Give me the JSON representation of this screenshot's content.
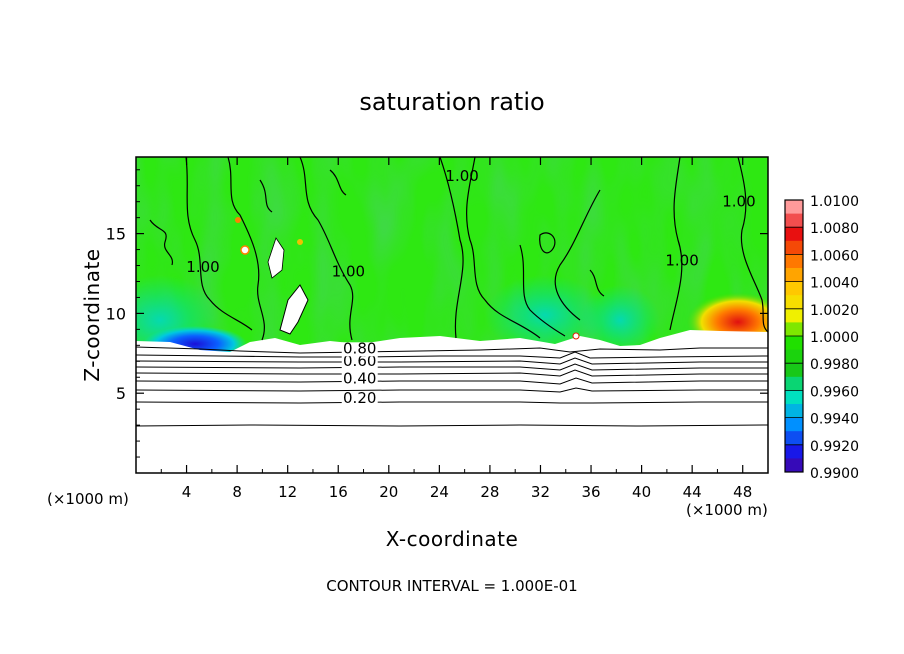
{
  "chart_data": {
    "type": "heatmap",
    "title": "saturation ratio",
    "xlabel": "X-coordinate",
    "ylabel": "Z-coordinate",
    "x_unit_label": "(×1000 m)",
    "x_ticks": [
      "4",
      "8",
      "12",
      "16",
      "20",
      "24",
      "28",
      "32",
      "36",
      "40",
      "44",
      "48"
    ],
    "y_ticks": [
      "5",
      "10",
      "15"
    ],
    "xlim": [
      0,
      50
    ],
    "ylim": [
      0,
      19.8
    ],
    "footer": "CONTOUR INTERVAL = 1.000E-01",
    "colorbar": {
      "labels": [
        "1.0100",
        "1.0080",
        "1.0060",
        "1.0040",
        "1.0020",
        "1.0000",
        "0.9980",
        "0.9960",
        "0.9940",
        "0.9920",
        "0.9900"
      ],
      "colors": [
        "#ff9a9a",
        "#e81010",
        "#ff7800",
        "#ffc800",
        "#f0f000",
        "#20e000",
        "#18c818",
        "#00e0c0",
        "#0090ff",
        "#1818e8",
        "#500090"
      ]
    },
    "contour_labels": [
      {
        "text": "0.20",
        "x": 17.7,
        "y": 4.4
      },
      {
        "text": "0.40",
        "x": 17.7,
        "y": 5.6
      },
      {
        "text": "0.60",
        "x": 17.7,
        "y": 6.7
      },
      {
        "text": "0.80",
        "x": 17.7,
        "y": 7.5
      },
      {
        "text": "1.00",
        "x": 25.8,
        "y": 18.3
      },
      {
        "text": "1.00",
        "x": 16.8,
        "y": 12.3
      },
      {
        "text": "1.00",
        "x": 43.2,
        "y": 13.0
      },
      {
        "text": "1.00",
        "x": 47.7,
        "y": 16.7
      },
      {
        "text": "1.00",
        "x": 5.3,
        "y": 12.6
      }
    ],
    "contour_levels_below": [
      0.2,
      0.3,
      0.4,
      0.5,
      0.6,
      0.7,
      0.8,
      0.9
    ],
    "contour_level_heights_km": [
      4.6,
      5.3,
      5.8,
      6.3,
      6.7,
      7.0,
      7.3,
      7.6
    ],
    "lowest_contour_height_km": 3.1,
    "saturated_layer_base_km": 8.5
  }
}
